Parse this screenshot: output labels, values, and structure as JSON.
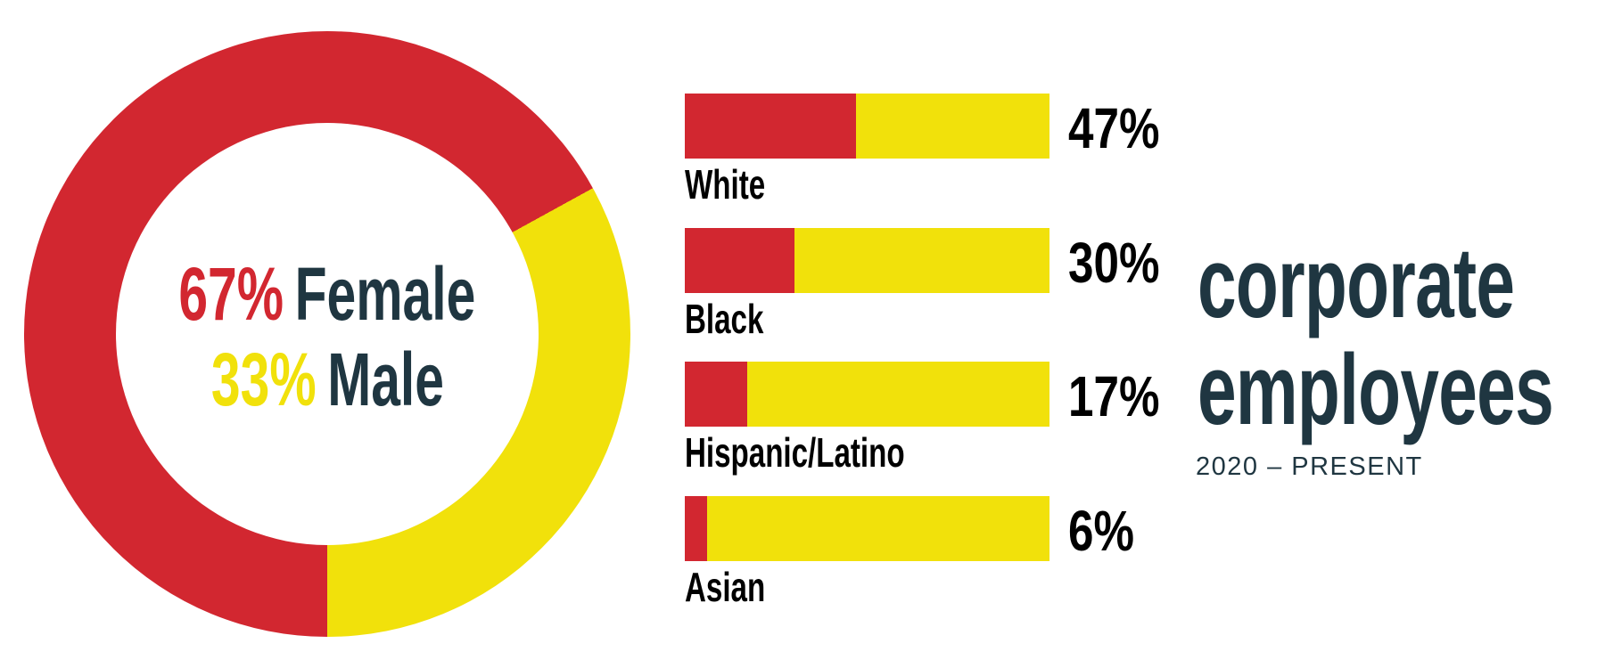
{
  "colors": {
    "red": "#d22730",
    "yellow": "#f1e10b",
    "navy": "#1f3641",
    "background": "#ffffff"
  },
  "donut": {
    "segments": [
      {
        "label": "Female",
        "value": 67,
        "color": "red"
      },
      {
        "label": "Male",
        "value": 33,
        "color": "yellow"
      }
    ],
    "center_lines": [
      {
        "value_text": "67%",
        "label_text": "Female",
        "value_color": "red"
      },
      {
        "value_text": "33%",
        "label_text": "Male",
        "value_color": "yellow"
      }
    ]
  },
  "bars": {
    "items": [
      {
        "label": "White",
        "value": 47,
        "value_text": "47%"
      },
      {
        "label": "Black",
        "value": 30,
        "value_text": "30%"
      },
      {
        "label": "Hispanic/Latino",
        "value": 17,
        "value_text": "17%"
      },
      {
        "label": "Asian",
        "value": 6,
        "value_text": "6%"
      }
    ]
  },
  "title": {
    "line1": "corporate",
    "line2": "employees",
    "subtitle": "2020 – PRESENT"
  },
  "chart_data": [
    {
      "type": "pie",
      "subtype": "donut",
      "title": "",
      "categories": [
        "Female",
        "Male"
      ],
      "values": [
        67,
        33
      ],
      "value_unit": "%",
      "colors": [
        "#d22730",
        "#f1e10b"
      ],
      "center_label_lines": [
        "67% Female",
        "33% Male"
      ],
      "legend_position": "center",
      "notes": "yellow (Male) slice spans from upper-right to bottom; red (Female) covers the rest"
    },
    {
      "type": "bar",
      "orientation": "horizontal",
      "title": "corporate employees",
      "subtitle": "2020 – PRESENT",
      "categories": [
        "White",
        "Black",
        "Hispanic/Latino",
        "Asian"
      ],
      "values": [
        47,
        30,
        17,
        6
      ],
      "value_unit": "%",
      "xlim": [
        0,
        100
      ],
      "grid": false,
      "legend_position": "none",
      "bar_style": "red segment = value %, yellow segment = remainder of 100%",
      "data_labels": [
        "47%",
        "30%",
        "17%",
        "6%"
      ]
    }
  ]
}
